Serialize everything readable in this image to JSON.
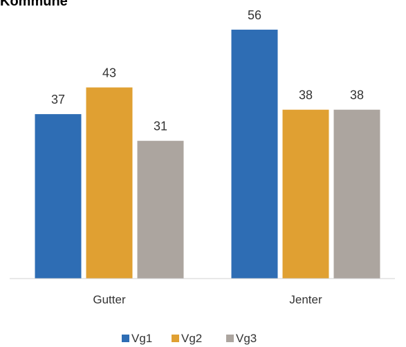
{
  "chart_data": {
    "type": "bar",
    "title": "Kommune",
    "xlabel": "",
    "ylabel": "",
    "ylim": [
      0,
      60
    ],
    "grid": false,
    "legend_position": "bottom",
    "categories": [
      "Gutter",
      "Jenter"
    ],
    "series": [
      {
        "name": "Vg1",
        "color": "#2e6db4",
        "values": [
          37,
          56
        ]
      },
      {
        "name": "Vg2",
        "color": "#e0a032",
        "values": [
          43,
          38
        ]
      },
      {
        "name": "Vg3",
        "color": "#aca59f",
        "values": [
          31,
          38
        ]
      }
    ]
  },
  "colors": {
    "axis": "#d0d0d0",
    "text": "#333333"
  }
}
